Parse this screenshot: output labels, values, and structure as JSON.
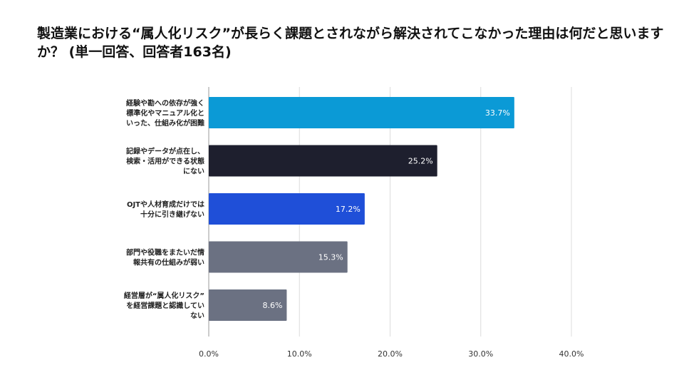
{
  "title": "製造業における“属人化リスク”が長らく課題とされながら解決されてこなかった理由は何だと思いますか？ (単一回答、回答者163名)",
  "chart_data": {
    "type": "bar",
    "orientation": "horizontal",
    "categories": [
      "経験や勘への依存が強く標準化やマニュアル化といった、仕組み化が困難",
      "記録やデータが点在し、検索・活用ができる状態にない",
      "OJTや人材育成だけでは十分に引き継げない",
      "部門や役職をまたいだ情報共有の仕組みが弱い",
      "経営層が“属人化リスク”を経営課題と認識していない"
    ],
    "category_lines": [
      [
        "経験や勘への依存が強く",
        "標準化やマニュアル化と",
        "いった、仕組み化が困難"
      ],
      [
        "記録やデータが点在し、",
        "検索・活用ができる状態",
        "にない"
      ],
      [
        "OJTや人材育成だけでは",
        "十分に引き継げない"
      ],
      [
        "部門や役職をまたいだ情",
        "報共有の仕組みが弱い"
      ],
      [
        "経営層が“属人化リスク”",
        "を経営課題と認識してい",
        "ない"
      ]
    ],
    "values": [
      33.7,
      25.2,
      17.2,
      15.3,
      8.6
    ],
    "value_labels": [
      "33.7%",
      "25.2%",
      "17.2%",
      "15.3%",
      "8.6%"
    ],
    "colors": [
      "#0b9ad6",
      "#1e1f2e",
      "#1f4fd8",
      "#6b7182",
      "#6b7182"
    ],
    "xlim": [
      0,
      40
    ],
    "ticks": [
      0,
      10,
      20,
      30,
      40
    ],
    "tick_labels": [
      "0.0%",
      "10.0%",
      "20.0%",
      "30.0%",
      "40.0%"
    ],
    "grid": true
  }
}
